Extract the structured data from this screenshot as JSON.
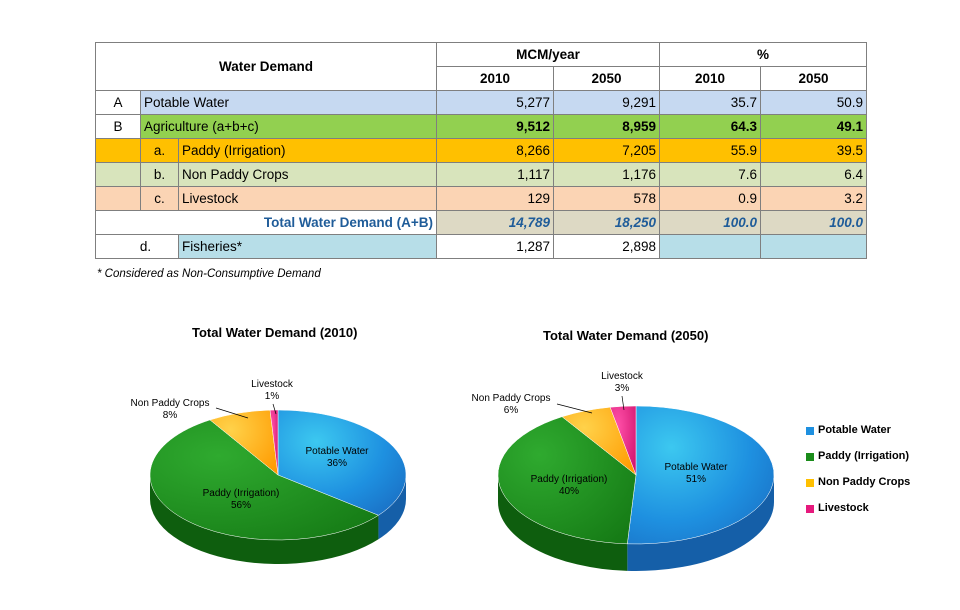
{
  "table": {
    "header": {
      "title": "Water Demand",
      "mcm": "MCM/year",
      "pct": "%",
      "y1": "2010",
      "y2": "2050"
    },
    "rows": [
      {
        "key": "A",
        "label": "Potable Water",
        "v2010": "5,277",
        "v2050": "9,291",
        "p2010": "35.7",
        "p2050": "50.9",
        "color": "#c6d9f1"
      },
      {
        "key": "B",
        "label": "Agriculture (a+b+c)",
        "v2010": "9,512",
        "v2050": "8,959",
        "p2010": "64.3",
        "p2050": "49.1",
        "color": "#92d050"
      },
      {
        "key": "a.",
        "label": "Paddy (Irrigation)",
        "v2010": "8,266",
        "v2050": "7,205",
        "p2010": "55.9",
        "p2050": "39.5",
        "color": "#ffc000"
      },
      {
        "key": "b.",
        "label": "Non Paddy Crops",
        "v2010": "1,117",
        "v2050": "1,176",
        "p2010": "7.6",
        "p2050": "6.4",
        "color": "#d8e4bc"
      },
      {
        "key": "c.",
        "label": "Livestock",
        "v2010": "129",
        "v2050": "578",
        "p2010": "0.9",
        "p2050": "3.2",
        "color": "#fbd4b4"
      }
    ],
    "total": {
      "label": "Total Water Demand (A+B)",
      "v2010": "14,789",
      "v2050": "18,250",
      "p2010": "100.0",
      "p2050": "100.0",
      "color": "#ddd9c4"
    },
    "fisheries": {
      "key": "d.",
      "label": "Fisheries*",
      "v2010": "1,287",
      "v2050": "2,898",
      "color": "#b7dee8"
    },
    "note": "* Considered as Non-Consumptive Demand"
  },
  "chart_data": [
    {
      "type": "pie",
      "title": "Total Water Demand (2010)",
      "labels": [
        "Potable Water",
        "Paddy (Irrigation)",
        "Non Paddy Crops",
        "Livestock"
      ],
      "values": [
        36,
        56,
        8,
        1
      ],
      "value_labels": [
        "36%",
        "56%",
        "8%",
        "1%"
      ]
    },
    {
      "type": "pie",
      "title": "Total Water Demand (2050)",
      "labels": [
        "Potable Water",
        "Paddy (Irrigation)",
        "Non Paddy Crops",
        "Livestock"
      ],
      "values": [
        51,
        40,
        6,
        3
      ],
      "value_labels": [
        "51%",
        "40%",
        "6%",
        "3%"
      ]
    }
  ],
  "legend": {
    "items": [
      "Potable Water",
      "Paddy (Irrigation)",
      "Non Paddy Crops",
      "Livestock"
    ],
    "colors": [
      "#1e90e0",
      "#1a8c1a",
      "#ffc000",
      "#e6197d"
    ]
  }
}
